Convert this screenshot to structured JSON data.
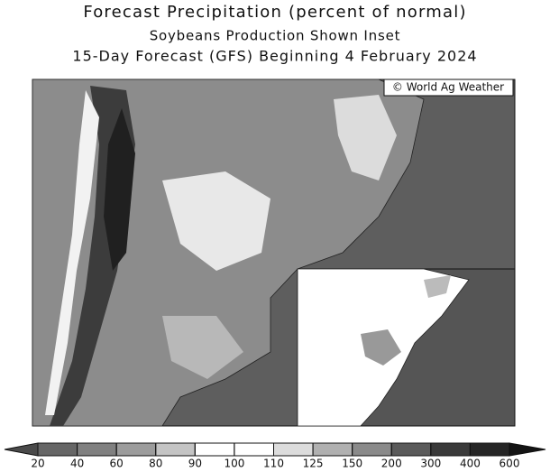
{
  "title": "Forecast Precipitation (percent of normal)",
  "subtitle": "Soybeans Production Shown Inset",
  "forecast_line": "15-Day Forecast (GFS) Beginning 4 February 2024",
  "map": {
    "credit": "© World Ag Weather"
  },
  "legend": {
    "ticks": [
      20,
      40,
      60,
      80,
      90,
      100,
      110,
      125,
      150,
      200,
      300,
      400,
      600
    ],
    "colors": [
      "#4a4a4a",
      "#666666",
      "#808080",
      "#9c9c9c",
      "#c4c4c4",
      "#ffffff",
      "#ffffff",
      "#dcdcdc",
      "#b0b0b0",
      "#8a8a8a",
      "#5a5a5a",
      "#3a3a3a",
      "#262626",
      "#141414"
    ]
  }
}
